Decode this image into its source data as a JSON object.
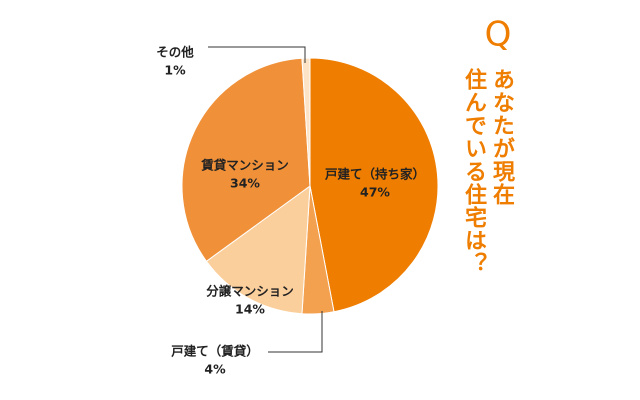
{
  "chart_data": {
    "type": "pie",
    "q_mark": "Q",
    "title_lines": [
      "あなたが現在",
      "住んでいる住宅は？"
    ],
    "categories": [
      "戸建て（持ち家）",
      "戸建て（賃貸）",
      "分譲マンション",
      "賃貸マンション",
      "その他"
    ],
    "values": [
      47,
      4,
      14,
      34,
      1
    ],
    "value_labels": [
      "47%",
      "4%",
      "14%",
      "34%",
      "1%"
    ],
    "colors": [
      "#ee7d00",
      "#f3a04f",
      "#fbcf9c",
      "#f0913a",
      "#fde3c6"
    ]
  }
}
